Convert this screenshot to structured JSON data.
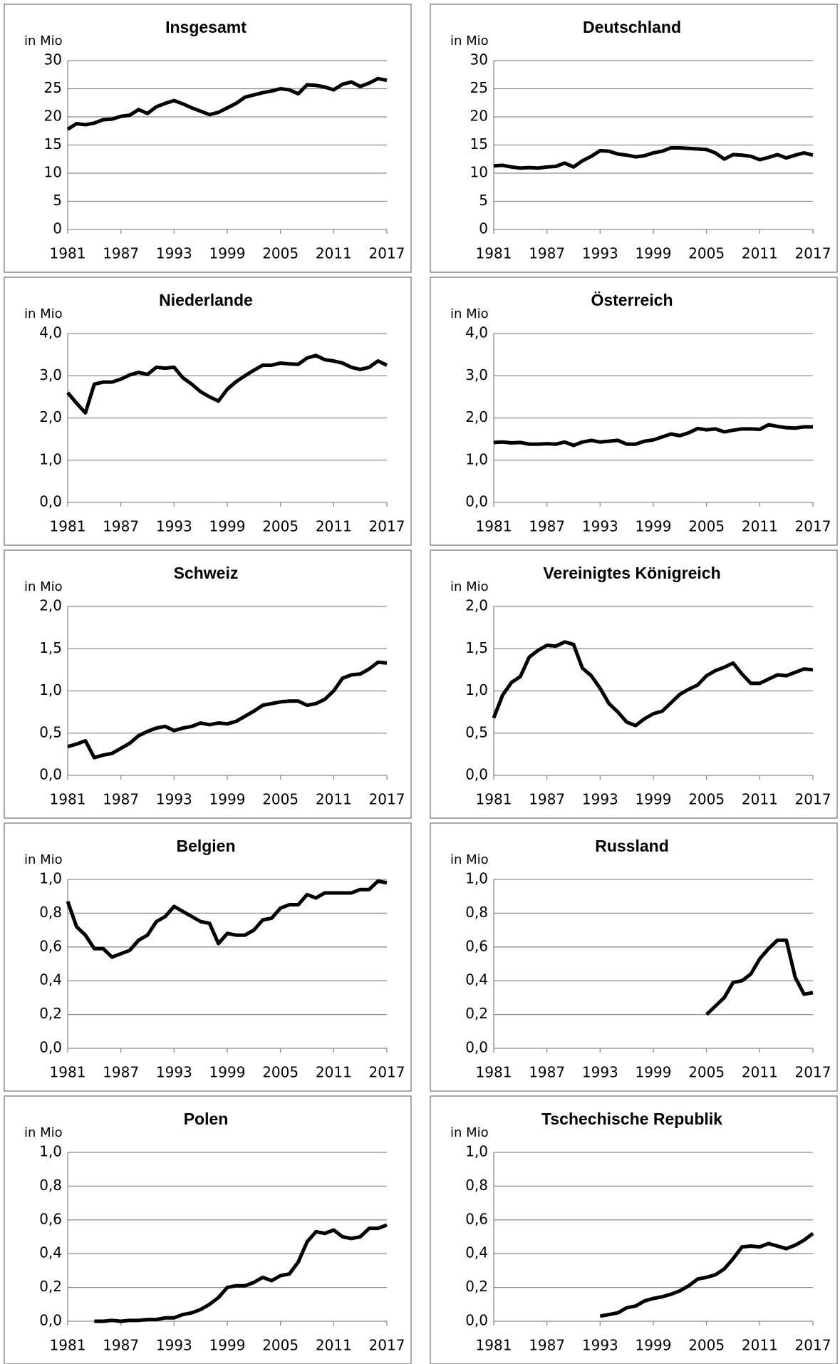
{
  "chart_data": [
    {
      "type": "line",
      "title": "Insgesamt",
      "y_label": "in Mio",
      "color": "#000000",
      "x": [
        1981,
        1982,
        1983,
        1984,
        1985,
        1986,
        1987,
        1988,
        1989,
        1990,
        1991,
        1992,
        1993,
        1994,
        1995,
        1996,
        1997,
        1998,
        1999,
        2000,
        2001,
        2002,
        2003,
        2004,
        2005,
        2006,
        2007,
        2008,
        2009,
        2010,
        2011,
        2012,
        2013,
        2014,
        2015,
        2016,
        2017
      ],
      "values": [
        17.8,
        18.8,
        18.6,
        18.9,
        19.5,
        19.6,
        20.1,
        20.3,
        21.3,
        20.6,
        21.8,
        22.4,
        22.9,
        22.3,
        21.6,
        21.0,
        20.4,
        20.8,
        21.6,
        22.4,
        23.5,
        23.9,
        24.3,
        24.6,
        25.0,
        24.8,
        24.1,
        25.7,
        25.6,
        25.3,
        24.8,
        25.8,
        26.2,
        25.4,
        26.0,
        26.8,
        26.5
      ],
      "xlim": [
        1981,
        2017
      ],
      "xticks": [
        1981,
        1987,
        1993,
        1999,
        2005,
        2011,
        2017
      ],
      "ylim": [
        0,
        30
      ],
      "yticks": [
        0,
        5,
        10,
        15,
        20,
        25,
        30
      ],
      "grid": true
    },
    {
      "type": "line",
      "title": "Deutschland",
      "y_label": "in Mio",
      "color": "#000000",
      "x": [
        1981,
        1982,
        1983,
        1984,
        1985,
        1986,
        1987,
        1988,
        1989,
        1990,
        1991,
        1992,
        1993,
        1994,
        1995,
        1996,
        1997,
        1998,
        1999,
        2000,
        2001,
        2002,
        2003,
        2004,
        2005,
        2006,
        2007,
        2008,
        2009,
        2010,
        2011,
        2012,
        2013,
        2014,
        2015,
        2016,
        2017
      ],
      "values": [
        11.3,
        11.4,
        11.1,
        10.9,
        11.0,
        10.9,
        11.1,
        11.2,
        11.8,
        11.1,
        12.2,
        13.0,
        14.0,
        13.9,
        13.4,
        13.2,
        12.9,
        13.1,
        13.6,
        13.9,
        14.5,
        14.5,
        14.4,
        14.3,
        14.2,
        13.6,
        12.5,
        13.3,
        13.2,
        13.0,
        12.4,
        12.8,
        13.3,
        12.7,
        13.2,
        13.6,
        13.2
      ],
      "xlim": [
        1981,
        2017
      ],
      "xticks": [
        1981,
        1987,
        1993,
        1999,
        2005,
        2011,
        2017
      ],
      "ylim": [
        0,
        30
      ],
      "yticks": [
        0,
        5,
        10,
        15,
        20,
        25,
        30
      ],
      "grid": true
    },
    {
      "type": "line",
      "title": "Niederlande",
      "y_label": "in Mio",
      "color": "#000000",
      "x": [
        1981,
        1982,
        1983,
        1984,
        1985,
        1986,
        1987,
        1988,
        1989,
        1990,
        1991,
        1992,
        1993,
        1994,
        1995,
        1996,
        1997,
        1998,
        1999,
        2000,
        2001,
        2002,
        2003,
        2004,
        2005,
        2006,
        2007,
        2008,
        2009,
        2010,
        2011,
        2012,
        2013,
        2014,
        2015,
        2016,
        2017
      ],
      "values": [
        2.6,
        2.35,
        2.12,
        2.8,
        2.85,
        2.85,
        2.92,
        3.02,
        3.08,
        3.03,
        3.2,
        3.18,
        3.2,
        2.95,
        2.8,
        2.62,
        2.5,
        2.4,
        2.68,
        2.86,
        3.0,
        3.13,
        3.25,
        3.25,
        3.3,
        3.28,
        3.27,
        3.42,
        3.48,
        3.38,
        3.35,
        3.3,
        3.2,
        3.15,
        3.2,
        3.35,
        3.25
      ],
      "xlim": [
        1981,
        2017
      ],
      "xticks": [
        1981,
        1987,
        1993,
        1999,
        2005,
        2011,
        2017
      ],
      "ylim": [
        0,
        4
      ],
      "yticks": [
        {
          "value": 0,
          "label": "0,0"
        },
        {
          "value": 1,
          "label": "1,0"
        },
        {
          "value": 2,
          "label": "2,0"
        },
        {
          "value": 3,
          "label": "3,0"
        },
        {
          "value": 4,
          "label": "4,0"
        }
      ],
      "grid": true
    },
    {
      "type": "line",
      "title": "Österreich",
      "y_label": "in Mio",
      "color": "#000000",
      "x": [
        1981,
        1982,
        1983,
        1984,
        1985,
        1986,
        1987,
        1988,
        1989,
        1990,
        1991,
        1992,
        1993,
        1994,
        1995,
        1996,
        1997,
        1998,
        1999,
        2000,
        2001,
        2002,
        2003,
        2004,
        2005,
        2006,
        2007,
        2008,
        2009,
        2010,
        2011,
        2012,
        2013,
        2014,
        2015,
        2016,
        2017
      ],
      "values": [
        1.42,
        1.43,
        1.41,
        1.42,
        1.38,
        1.38,
        1.39,
        1.38,
        1.43,
        1.35,
        1.43,
        1.47,
        1.43,
        1.45,
        1.47,
        1.38,
        1.38,
        1.45,
        1.48,
        1.55,
        1.62,
        1.58,
        1.65,
        1.75,
        1.72,
        1.74,
        1.67,
        1.71,
        1.74,
        1.74,
        1.73,
        1.84,
        1.8,
        1.77,
        1.76,
        1.79,
        1.79
      ],
      "xlim": [
        1981,
        2017
      ],
      "xticks": [
        1981,
        1987,
        1993,
        1999,
        2005,
        2011,
        2017
      ],
      "ylim": [
        0,
        4
      ],
      "yticks": [
        {
          "value": 0,
          "label": "0,0"
        },
        {
          "value": 1,
          "label": "1,0"
        },
        {
          "value": 2,
          "label": "2,0"
        },
        {
          "value": 3,
          "label": "3,0"
        },
        {
          "value": 4,
          "label": "4,0"
        }
      ],
      "grid": true
    },
    {
      "type": "line",
      "title": "Schweiz",
      "y_label": "in Mio",
      "color": "#000000",
      "x": [
        1981,
        1982,
        1983,
        1984,
        1985,
        1986,
        1987,
        1988,
        1989,
        1990,
        1991,
        1992,
        1993,
        1994,
        1995,
        1996,
        1997,
        1998,
        1999,
        2000,
        2001,
        2002,
        2003,
        2004,
        2005,
        2006,
        2007,
        2008,
        2009,
        2010,
        2011,
        2012,
        2013,
        2014,
        2015,
        2016,
        2017
      ],
      "values": [
        0.34,
        0.37,
        0.41,
        0.21,
        0.24,
        0.26,
        0.32,
        0.38,
        0.47,
        0.52,
        0.56,
        0.58,
        0.53,
        0.56,
        0.58,
        0.62,
        0.6,
        0.62,
        0.61,
        0.64,
        0.7,
        0.76,
        0.83,
        0.85,
        0.87,
        0.88,
        0.88,
        0.83,
        0.85,
        0.9,
        1.0,
        1.15,
        1.19,
        1.2,
        1.26,
        1.34,
        1.33
      ],
      "xlim": [
        1981,
        2017
      ],
      "xticks": [
        1981,
        1987,
        1993,
        1999,
        2005,
        2011,
        2017
      ],
      "ylim": [
        0,
        2
      ],
      "yticks": [
        {
          "value": 0,
          "label": "0,0"
        },
        {
          "value": 0.5,
          "label": "0,5"
        },
        {
          "value": 1,
          "label": "1,0"
        },
        {
          "value": 1.5,
          "label": "1,5"
        },
        {
          "value": 2,
          "label": "2,0"
        }
      ],
      "grid": true
    },
    {
      "type": "line",
      "title": "Vereinigtes Königreich",
      "y_label": "in Mio",
      "color": "#000000",
      "x": [
        1981,
        1982,
        1983,
        1984,
        1985,
        1986,
        1987,
        1988,
        1989,
        1990,
        1991,
        1992,
        1993,
        1994,
        1995,
        1996,
        1997,
        1998,
        1999,
        2000,
        2001,
        2002,
        2003,
        2004,
        2005,
        2006,
        2007,
        2008,
        2009,
        2010,
        2011,
        2012,
        2013,
        2014,
        2015,
        2016,
        2017
      ],
      "values": [
        0.68,
        0.95,
        1.1,
        1.17,
        1.4,
        1.48,
        1.54,
        1.53,
        1.58,
        1.55,
        1.27,
        1.18,
        1.03,
        0.85,
        0.75,
        0.63,
        0.59,
        0.67,
        0.73,
        0.76,
        0.86,
        0.96,
        1.02,
        1.07,
        1.18,
        1.24,
        1.28,
        1.33,
        1.2,
        1.09,
        1.09,
        1.14,
        1.19,
        1.18,
        1.22,
        1.26,
        1.25
      ],
      "xlim": [
        1981,
        2017
      ],
      "xticks": [
        1981,
        1987,
        1993,
        1999,
        2005,
        2011,
        2017
      ],
      "ylim": [
        0,
        2
      ],
      "yticks": [
        {
          "value": 0,
          "label": "0,0"
        },
        {
          "value": 0.5,
          "label": "0,5"
        },
        {
          "value": 1,
          "label": "1,0"
        },
        {
          "value": 1.5,
          "label": "1,5"
        },
        {
          "value": 2,
          "label": "2,0"
        }
      ],
      "grid": true
    },
    {
      "type": "line",
      "title": "Belgien",
      "y_label": "in Mio",
      "color": "#000000",
      "x": [
        1981,
        1982,
        1983,
        1984,
        1985,
        1986,
        1987,
        1988,
        1989,
        1990,
        1991,
        1992,
        1993,
        1994,
        1995,
        1996,
        1997,
        1998,
        1999,
        2000,
        2001,
        2002,
        2003,
        2004,
        2005,
        2006,
        2007,
        2008,
        2009,
        2010,
        2011,
        2012,
        2013,
        2014,
        2015,
        2016,
        2017
      ],
      "values": [
        0.87,
        0.72,
        0.67,
        0.59,
        0.59,
        0.54,
        0.56,
        0.58,
        0.64,
        0.67,
        0.75,
        0.78,
        0.84,
        0.81,
        0.78,
        0.75,
        0.74,
        0.62,
        0.68,
        0.67,
        0.67,
        0.7,
        0.76,
        0.77,
        0.83,
        0.85,
        0.85,
        0.91,
        0.89,
        0.92,
        0.92,
        0.92,
        0.92,
        0.94,
        0.94,
        0.99,
        0.98
      ],
      "xlim": [
        1981,
        2017
      ],
      "xticks": [
        1981,
        1987,
        1993,
        1999,
        2005,
        2011,
        2017
      ],
      "ylim": [
        0,
        1
      ],
      "yticks": [
        {
          "value": 0,
          "label": "0,0"
        },
        {
          "value": 0.2,
          "label": "0,2"
        },
        {
          "value": 0.4,
          "label": "0,4"
        },
        {
          "value": 0.6,
          "label": "0,6"
        },
        {
          "value": 0.8,
          "label": "0,8"
        },
        {
          "value": 1,
          "label": "1,0"
        }
      ],
      "grid": true
    },
    {
      "type": "line",
      "title": "Russland",
      "y_label": "in Mio",
      "color": "#000000",
      "x": [
        1981,
        1982,
        1983,
        1984,
        1985,
        1986,
        1987,
        1988,
        1989,
        1990,
        1991,
        1992,
        1993,
        1994,
        1995,
        1996,
        1997,
        1998,
        1999,
        2000,
        2001,
        2002,
        2003,
        2004,
        2005,
        2006,
        2007,
        2008,
        2009,
        2010,
        2011,
        2012,
        2013,
        2014,
        2015,
        2016,
        2017
      ],
      "values": [
        null,
        null,
        null,
        null,
        null,
        null,
        null,
        null,
        null,
        null,
        null,
        null,
        null,
        null,
        null,
        null,
        null,
        null,
        null,
        null,
        null,
        null,
        null,
        null,
        0.2,
        0.25,
        0.3,
        0.39,
        0.4,
        0.44,
        0.53,
        0.59,
        0.64,
        0.64,
        0.42,
        0.32,
        0.33
      ],
      "xlim": [
        1981,
        2017
      ],
      "xticks": [
        1981,
        1987,
        1993,
        1999,
        2005,
        2011,
        2017
      ],
      "ylim": [
        0,
        1
      ],
      "yticks": [
        {
          "value": 0,
          "label": "0,0"
        },
        {
          "value": 0.2,
          "label": "0,2"
        },
        {
          "value": 0.4,
          "label": "0,4"
        },
        {
          "value": 0.6,
          "label": "0,6"
        },
        {
          "value": 0.8,
          "label": "0,8"
        },
        {
          "value": 1,
          "label": "1,0"
        }
      ],
      "grid": true
    },
    {
      "type": "line",
      "title": "Polen",
      "y_label": "in Mio",
      "color": "#000000",
      "x": [
        1981,
        1982,
        1983,
        1984,
        1985,
        1986,
        1987,
        1988,
        1989,
        1990,
        1991,
        1992,
        1993,
        1994,
        1995,
        1996,
        1997,
        1998,
        1999,
        2000,
        2001,
        2002,
        2003,
        2004,
        2005,
        2006,
        2007,
        2008,
        2009,
        2010,
        2011,
        2012,
        2013,
        2014,
        2015,
        2016,
        2017
      ],
      "values": [
        null,
        null,
        null,
        0,
        0,
        0.005,
        0,
        0.005,
        0.005,
        0.01,
        0.01,
        0.02,
        0.02,
        0.04,
        0.05,
        0.07,
        0.1,
        0.14,
        0.2,
        0.21,
        0.21,
        0.23,
        0.26,
        0.24,
        0.27,
        0.28,
        0.35,
        0.47,
        0.53,
        0.52,
        0.54,
        0.5,
        0.49,
        0.5,
        0.55,
        0.55,
        0.57
      ],
      "xlim": [
        1981,
        2017
      ],
      "xticks": [
        1981,
        1987,
        1993,
        1999,
        2005,
        2011,
        2017
      ],
      "ylim": [
        0,
        1
      ],
      "yticks": [
        {
          "value": 0,
          "label": "0,0"
        },
        {
          "value": 0.2,
          "label": "0,2"
        },
        {
          "value": 0.4,
          "label": "0,4"
        },
        {
          "value": 0.6,
          "label": "0,6"
        },
        {
          "value": 0.8,
          "label": "0,8"
        },
        {
          "value": 1,
          "label": "1,0"
        }
      ],
      "grid": true
    },
    {
      "type": "line",
      "title": "Tschechische Republik",
      "y_label": "in Mio",
      "color": "#000000",
      "x": [
        1981,
        1982,
        1983,
        1984,
        1985,
        1986,
        1987,
        1988,
        1989,
        1990,
        1991,
        1992,
        1993,
        1994,
        1995,
        1996,
        1997,
        1998,
        1999,
        2000,
        2001,
        2002,
        2003,
        2004,
        2005,
        2006,
        2007,
        2008,
        2009,
        2010,
        2011,
        2012,
        2013,
        2014,
        2015,
        2016,
        2017
      ],
      "values": [
        null,
        null,
        null,
        null,
        null,
        null,
        null,
        null,
        null,
        null,
        null,
        null,
        0.03,
        0.04,
        0.05,
        0.08,
        0.09,
        0.12,
        0.135,
        0.145,
        0.16,
        0.18,
        0.21,
        0.25,
        0.26,
        0.275,
        0.31,
        0.37,
        0.44,
        0.445,
        0.44,
        0.46,
        0.445,
        0.43,
        0.45,
        0.48,
        0.52
      ],
      "xlim": [
        1981,
        2017
      ],
      "xticks": [
        1981,
        1987,
        1993,
        1999,
        2005,
        2011,
        2017
      ],
      "ylim": [
        0,
        1
      ],
      "yticks": [
        {
          "value": 0,
          "label": "0,0"
        },
        {
          "value": 0.2,
          "label": "0,2"
        },
        {
          "value": 0.4,
          "label": "0,4"
        },
        {
          "value": 0.6,
          "label": "0,6"
        },
        {
          "value": 0.8,
          "label": "0,8"
        },
        {
          "value": 1,
          "label": "1,0"
        }
      ],
      "grid": true
    }
  ]
}
